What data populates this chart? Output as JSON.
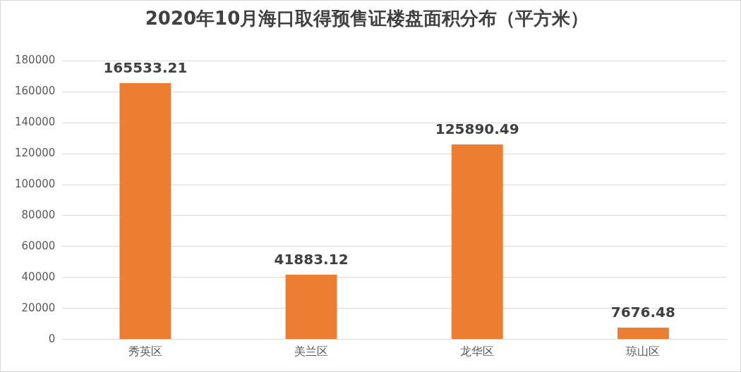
{
  "chart_data": {
    "type": "bar",
    "title": "2020年10月海口取得预售证楼盘面积分布（平方米）",
    "categories": [
      "秀英区",
      "美兰区",
      "龙华区",
      "琼山区"
    ],
    "values": [
      165533.21,
      41883.12,
      125890.49,
      7676.48
    ],
    "color": "#ed7d31",
    "ylim": [
      0,
      180000
    ],
    "yticks": [
      0,
      20000,
      40000,
      60000,
      80000,
      100000,
      120000,
      140000,
      160000,
      180000
    ],
    "grid": "y",
    "data_labels": true,
    "legend": false
  }
}
